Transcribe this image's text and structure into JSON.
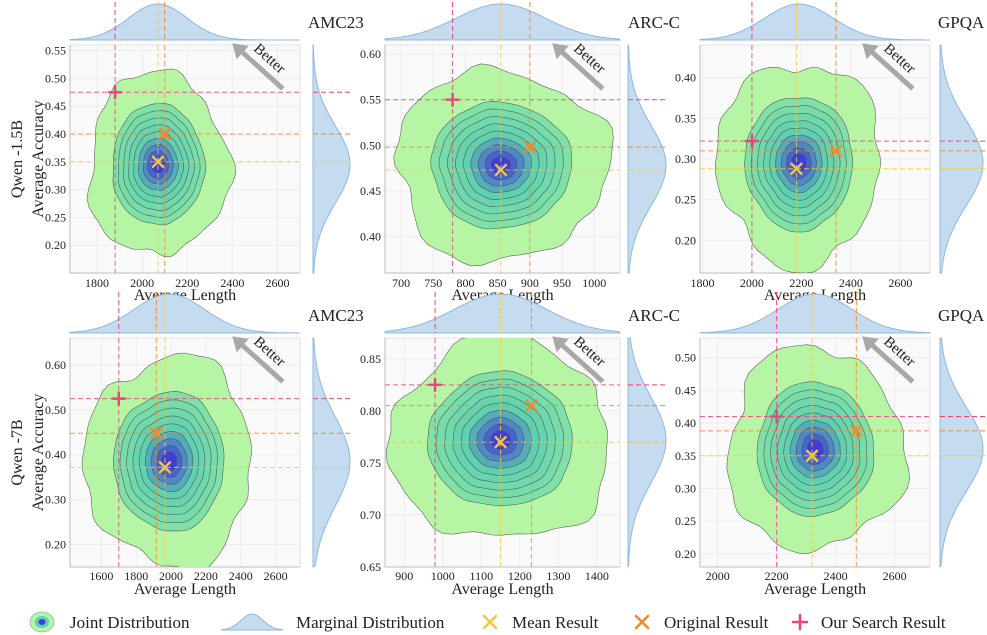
{
  "colors": {
    "joint_outer": "#b6f5a4",
    "joint_mid": "#5fd0b0",
    "joint_inner": "#3f3fd8",
    "marginal": "#c5dcf0",
    "marginal_stroke": "#8fb8dc",
    "mean": "#f2c744",
    "original": "#f08a2c",
    "search": "#e8457a",
    "arrow": "#a8a8a8"
  },
  "labels": {
    "better": "Better",
    "xlabel": "Average Length",
    "ylabel": "Average Accuracy"
  },
  "rows": [
    {
      "model": "Qwen -1.5B"
    },
    {
      "model": "Qwen -7B"
    }
  ],
  "legend": [
    {
      "key": "joint",
      "label": "Joint Distribution"
    },
    {
      "key": "marginal",
      "label": "Marginal Distribution"
    },
    {
      "key": "mean",
      "label": "Mean Result"
    },
    {
      "key": "original",
      "label": "Original Result"
    },
    {
      "key": "search",
      "label": "Our Search Result"
    }
  ],
  "chart_data": [
    {
      "type": "scatter",
      "row": 0,
      "col": 0,
      "title": "AMC23",
      "xlabel": "Average Length",
      "ylabel": "Average Accuracy",
      "xlim": [
        1680,
        2700
      ],
      "ylim": [
        0.15,
        0.56
      ],
      "xticks": [
        1800,
        2000,
        2200,
        2400,
        2600
      ],
      "yticks": [
        0.2,
        0.25,
        0.3,
        0.35,
        0.4,
        0.45,
        0.5,
        0.55
      ],
      "ytick_labels": [
        "0.20",
        "0.25",
        "0.30",
        "0.35",
        "0.40",
        "0.45",
        "0.50",
        "0.55"
      ],
      "mean": [
        2070,
        0.35
      ],
      "original": [
        2100,
        0.4
      ],
      "search": [
        1880,
        0.475
      ],
      "contour_center": [
        2070,
        0.345
      ],
      "contour_spread": [
        310,
        0.165
      ]
    },
    {
      "type": "scatter",
      "row": 0,
      "col": 1,
      "title": "ARC-C",
      "xlabel": "Average Length",
      "ylabel": "",
      "xlim": [
        675,
        1040
      ],
      "ylim": [
        0.36,
        0.61
      ],
      "xticks": [
        700,
        750,
        800,
        850,
        900,
        950,
        1000
      ],
      "yticks": [
        0.4,
        0.45,
        0.5,
        0.55,
        0.6
      ],
      "ytick_labels": [
        "0.40",
        "0.45",
        "0.50",
        "0.55",
        "0.60"
      ],
      "mean": [
        855,
        0.473
      ],
      "original": [
        900,
        0.498
      ],
      "search": [
        780,
        0.55
      ],
      "contour_center": [
        855,
        0.478
      ],
      "contour_spread": [
        165,
        0.105
      ]
    },
    {
      "type": "scatter",
      "row": 0,
      "col": 2,
      "title": "GPQA",
      "xlabel": "Average Length",
      "ylabel": "",
      "xlim": [
        1790,
        2720
      ],
      "ylim": [
        0.16,
        0.44
      ],
      "xticks": [
        1800,
        2000,
        2200,
        2400,
        2600
      ],
      "yticks": [
        0.2,
        0.25,
        0.3,
        0.35,
        0.4
      ],
      "ytick_labels": [
        "0.20",
        "0.25",
        "0.30",
        "0.35",
        "0.40"
      ],
      "mean": [
        2180,
        0.288
      ],
      "original": [
        2340,
        0.31
      ],
      "search": [
        2000,
        0.322
      ],
      "contour_center": [
        2190,
        0.295
      ],
      "contour_spread": [
        330,
        0.125
      ]
    },
    {
      "type": "scatter",
      "row": 1,
      "col": 0,
      "title": "AMC23",
      "xlabel": "Average Length",
      "ylabel": "Average Accuracy",
      "xlim": [
        1420,
        2740
      ],
      "ylim": [
        0.15,
        0.66
      ],
      "xticks": [
        1600,
        1800,
        2000,
        2200,
        2400,
        2600
      ],
      "yticks": [
        0.2,
        0.3,
        0.4,
        0.5,
        0.6
      ],
      "ytick_labels": [
        "0.20",
        "0.30",
        "0.40",
        "0.50",
        "0.60"
      ],
      "mean": [
        1965,
        0.372
      ],
      "original": [
        1915,
        0.448
      ],
      "search": [
        1700,
        0.525
      ],
      "contour_center": [
        1990,
        0.385
      ],
      "contour_spread": [
        480,
        0.235
      ]
    },
    {
      "type": "scatter",
      "row": 1,
      "col": 1,
      "title": "ARC-C",
      "xlabel": "Average Length",
      "ylabel": "",
      "xlim": [
        850,
        1460
      ],
      "ylim": [
        0.65,
        0.87
      ],
      "xticks": [
        900,
        1000,
        1100,
        1200,
        1300,
        1400
      ],
      "yticks": [
        0.65,
        0.7,
        0.75,
        0.8,
        0.85
      ],
      "ytick_labels": [
        "0.65",
        "0.70",
        "0.75",
        "0.80",
        "0.85"
      ],
      "mean": [
        1150,
        0.77
      ],
      "original": [
        1230,
        0.805
      ],
      "search": [
        980,
        0.825
      ],
      "contour_center": [
        1150,
        0.772
      ],
      "contour_spread": [
        285,
        0.098
      ]
    },
    {
      "type": "scatter",
      "row": 1,
      "col": 2,
      "title": "GPQA",
      "xlabel": "Average Length",
      "ylabel": "",
      "xlim": [
        1940,
        2720
      ],
      "ylim": [
        0.18,
        0.53
      ],
      "xticks": [
        2000,
        2200,
        2400,
        2600
      ],
      "yticks": [
        0.2,
        0.25,
        0.3,
        0.35,
        0.4,
        0.45,
        0.5
      ],
      "ytick_labels": [
        "0.20",
        "0.25",
        "0.30",
        "0.35",
        "0.40",
        "0.45",
        "0.50"
      ],
      "mean": [
        2320,
        0.35
      ],
      "original": [
        2470,
        0.388
      ],
      "search": [
        2200,
        0.41
      ],
      "contour_center": [
        2330,
        0.36
      ],
      "contour_spread": [
        300,
        0.155
      ]
    }
  ]
}
